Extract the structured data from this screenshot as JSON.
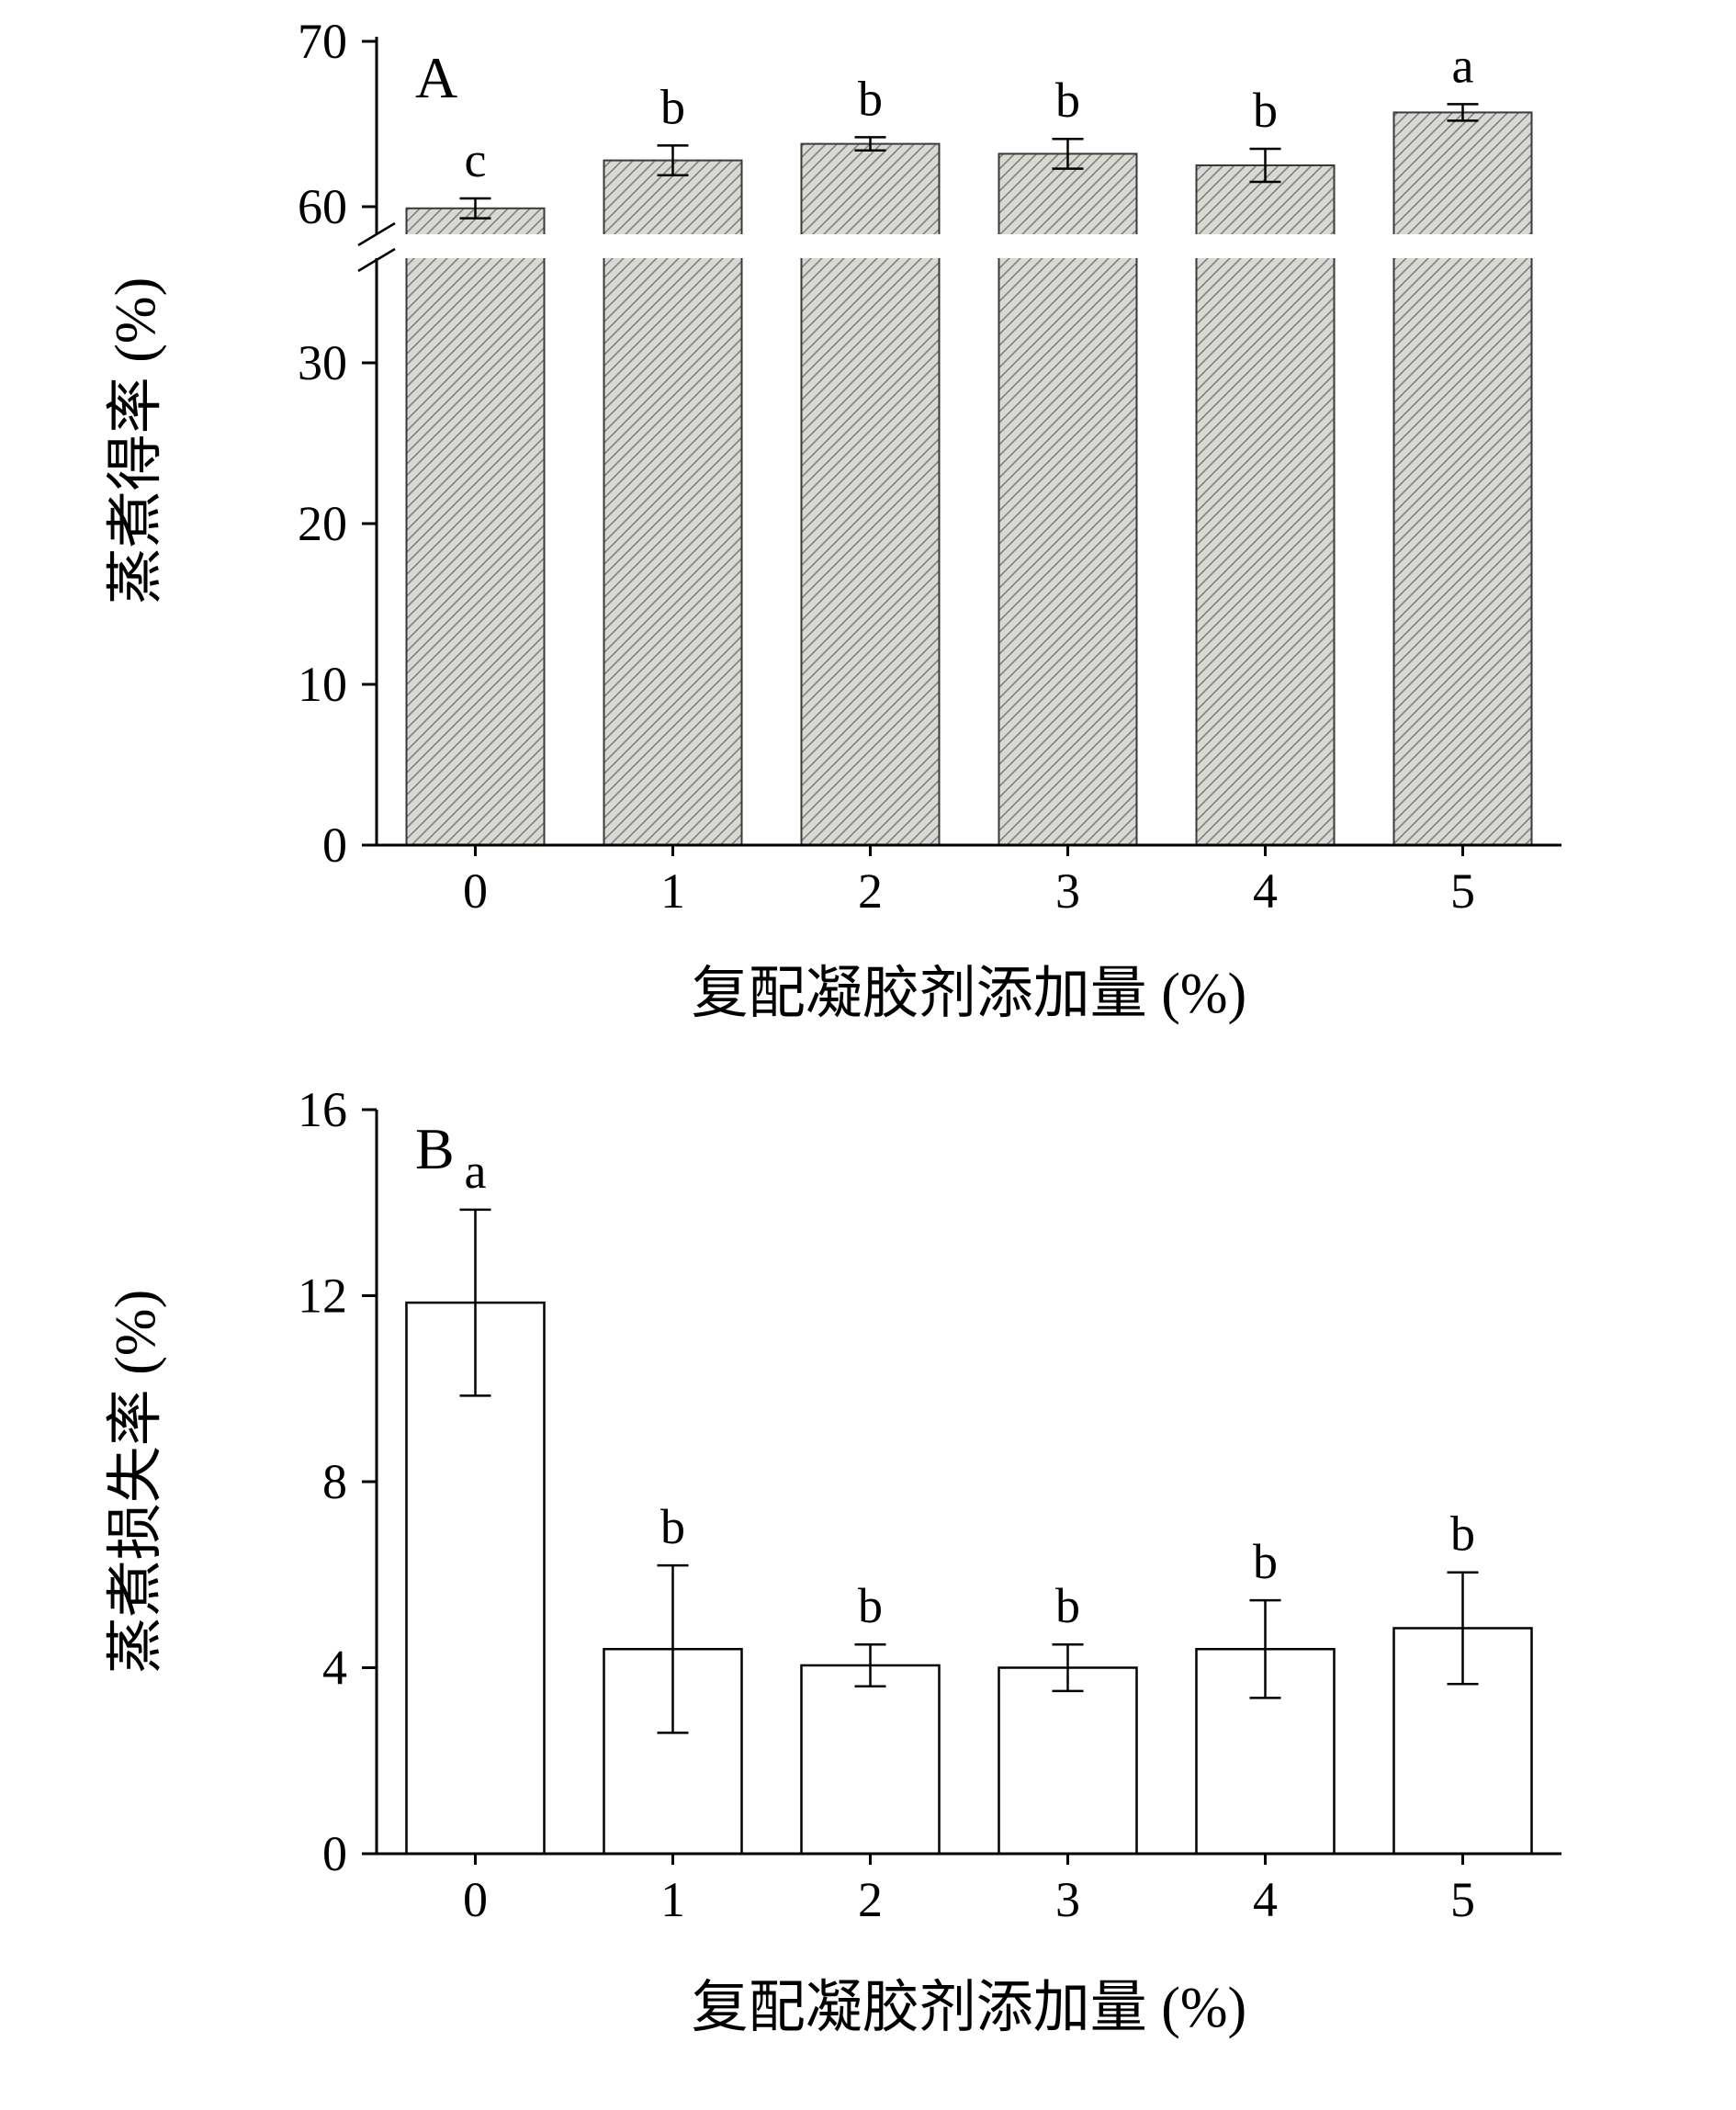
{
  "figure": {
    "panels": [
      {
        "label": "A"
      },
      {
        "label": "B"
      }
    ]
  },
  "chart_data": [
    {
      "type": "bar",
      "panel_label": "A",
      "xlabel": "复配凝胶剂添加量 (%)",
      "ylabel": "蒸煮得率 (%)",
      "categories": [
        "0",
        "1",
        "2",
        "3",
        "4",
        "5"
      ],
      "values": [
        59.9,
        62.8,
        63.8,
        63.2,
        62.5,
        65.7
      ],
      "errors": [
        0.6,
        0.9,
        0.4,
        0.9,
        1.0,
        0.5
      ],
      "sig_letters": [
        "c",
        "b",
        "b",
        "b",
        "b",
        "a"
      ],
      "ylim": [
        0,
        70
      ],
      "yticks_lower": [
        0,
        10,
        20,
        30
      ],
      "yticks_upper": [
        60,
        70
      ],
      "axis_break_between": [
        30,
        60
      ],
      "grid": false,
      "legend": "none",
      "bar_style": {
        "fill": "#d8d8d4",
        "hatch_color": "#82827c",
        "hatch": "diagonal",
        "outline": "#3a3a3a"
      }
    },
    {
      "type": "bar",
      "panel_label": "B",
      "xlabel": "复配凝胶剂添加量 (%)",
      "ylabel": "蒸煮损失率 (%)",
      "categories": [
        "0",
        "1",
        "2",
        "3",
        "4",
        "5"
      ],
      "values": [
        11.85,
        4.4,
        4.05,
        4.0,
        4.4,
        4.85
      ],
      "errors": [
        2.0,
        1.8,
        0.45,
        0.5,
        1.05,
        1.2
      ],
      "sig_letters": [
        "a",
        "b",
        "b",
        "b",
        "b",
        "b"
      ],
      "ylim": [
        0,
        16
      ],
      "yticks": [
        0,
        4,
        8,
        12,
        16
      ],
      "grid": false,
      "legend": "none",
      "bar_style": {
        "fill": "#ffffff",
        "outline": "#000000"
      }
    }
  ]
}
